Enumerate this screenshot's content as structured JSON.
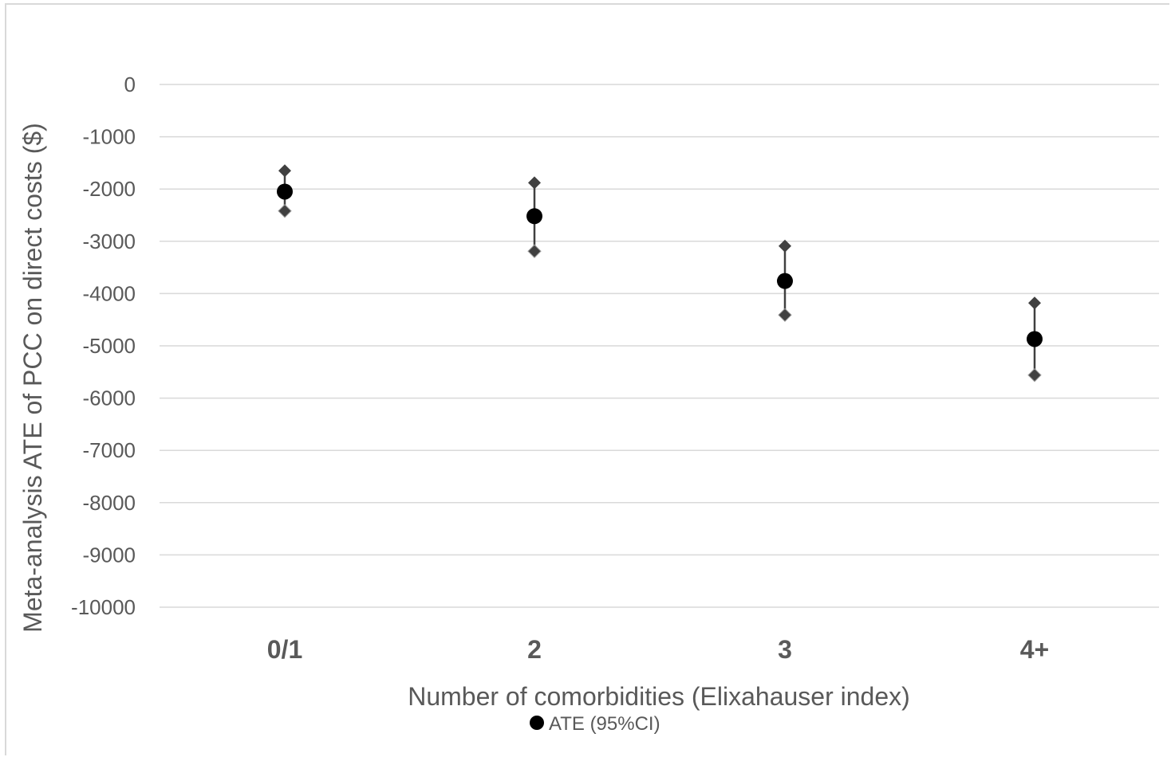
{
  "chart_data": {
    "type": "scatter",
    "title": "",
    "xlabel": "Number of comorbidities (Elixahauser index)",
    "ylabel": "Meta-analysis ATE of PCC on direct costs ($)",
    "categories": [
      "0/1",
      "2",
      "3",
      "4+"
    ],
    "ylim": [
      -10000,
      0
    ],
    "yticks": [
      0,
      -1000,
      -2000,
      -3000,
      -4000,
      -5000,
      -6000,
      -7000,
      -8000,
      -9000,
      -10000
    ],
    "grid": true,
    "legend": "bottom",
    "series": [
      {
        "name": "ATE (95%CI)",
        "values": [
          -2050,
          -2520,
          -3760,
          -4870
        ],
        "upper": [
          -1650,
          -1880,
          -3090,
          -4180
        ],
        "lower": [
          -2420,
          -3190,
          -4410,
          -5560
        ]
      }
    ],
    "colors": {
      "point": "#000000",
      "ci": "#404040",
      "grid": "#d9d9d9",
      "text": "#595959"
    }
  }
}
